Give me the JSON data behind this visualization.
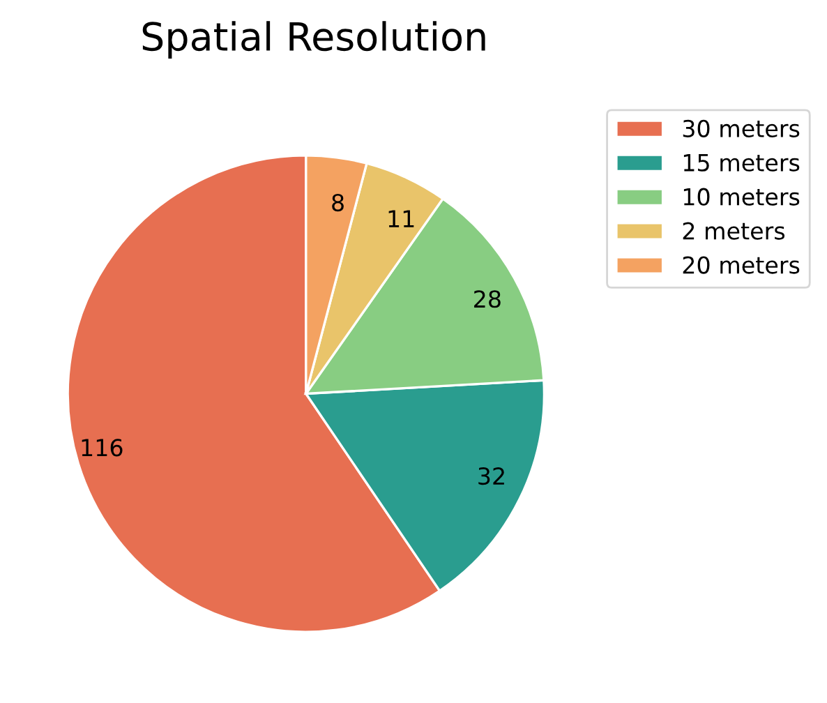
{
  "chart_data": {
    "type": "pie",
    "title": "Spatial Resolution",
    "categories": [
      "30 meters",
      "15 meters",
      "10 meters",
      "2 meters",
      "20 meters"
    ],
    "values": [
      116,
      32,
      28,
      11,
      8
    ],
    "colors": [
      "#e76f51",
      "#2a9d8f",
      "#88cd82",
      "#e9c46a",
      "#f4a261"
    ],
    "data_labels": true,
    "legend": "top right"
  }
}
